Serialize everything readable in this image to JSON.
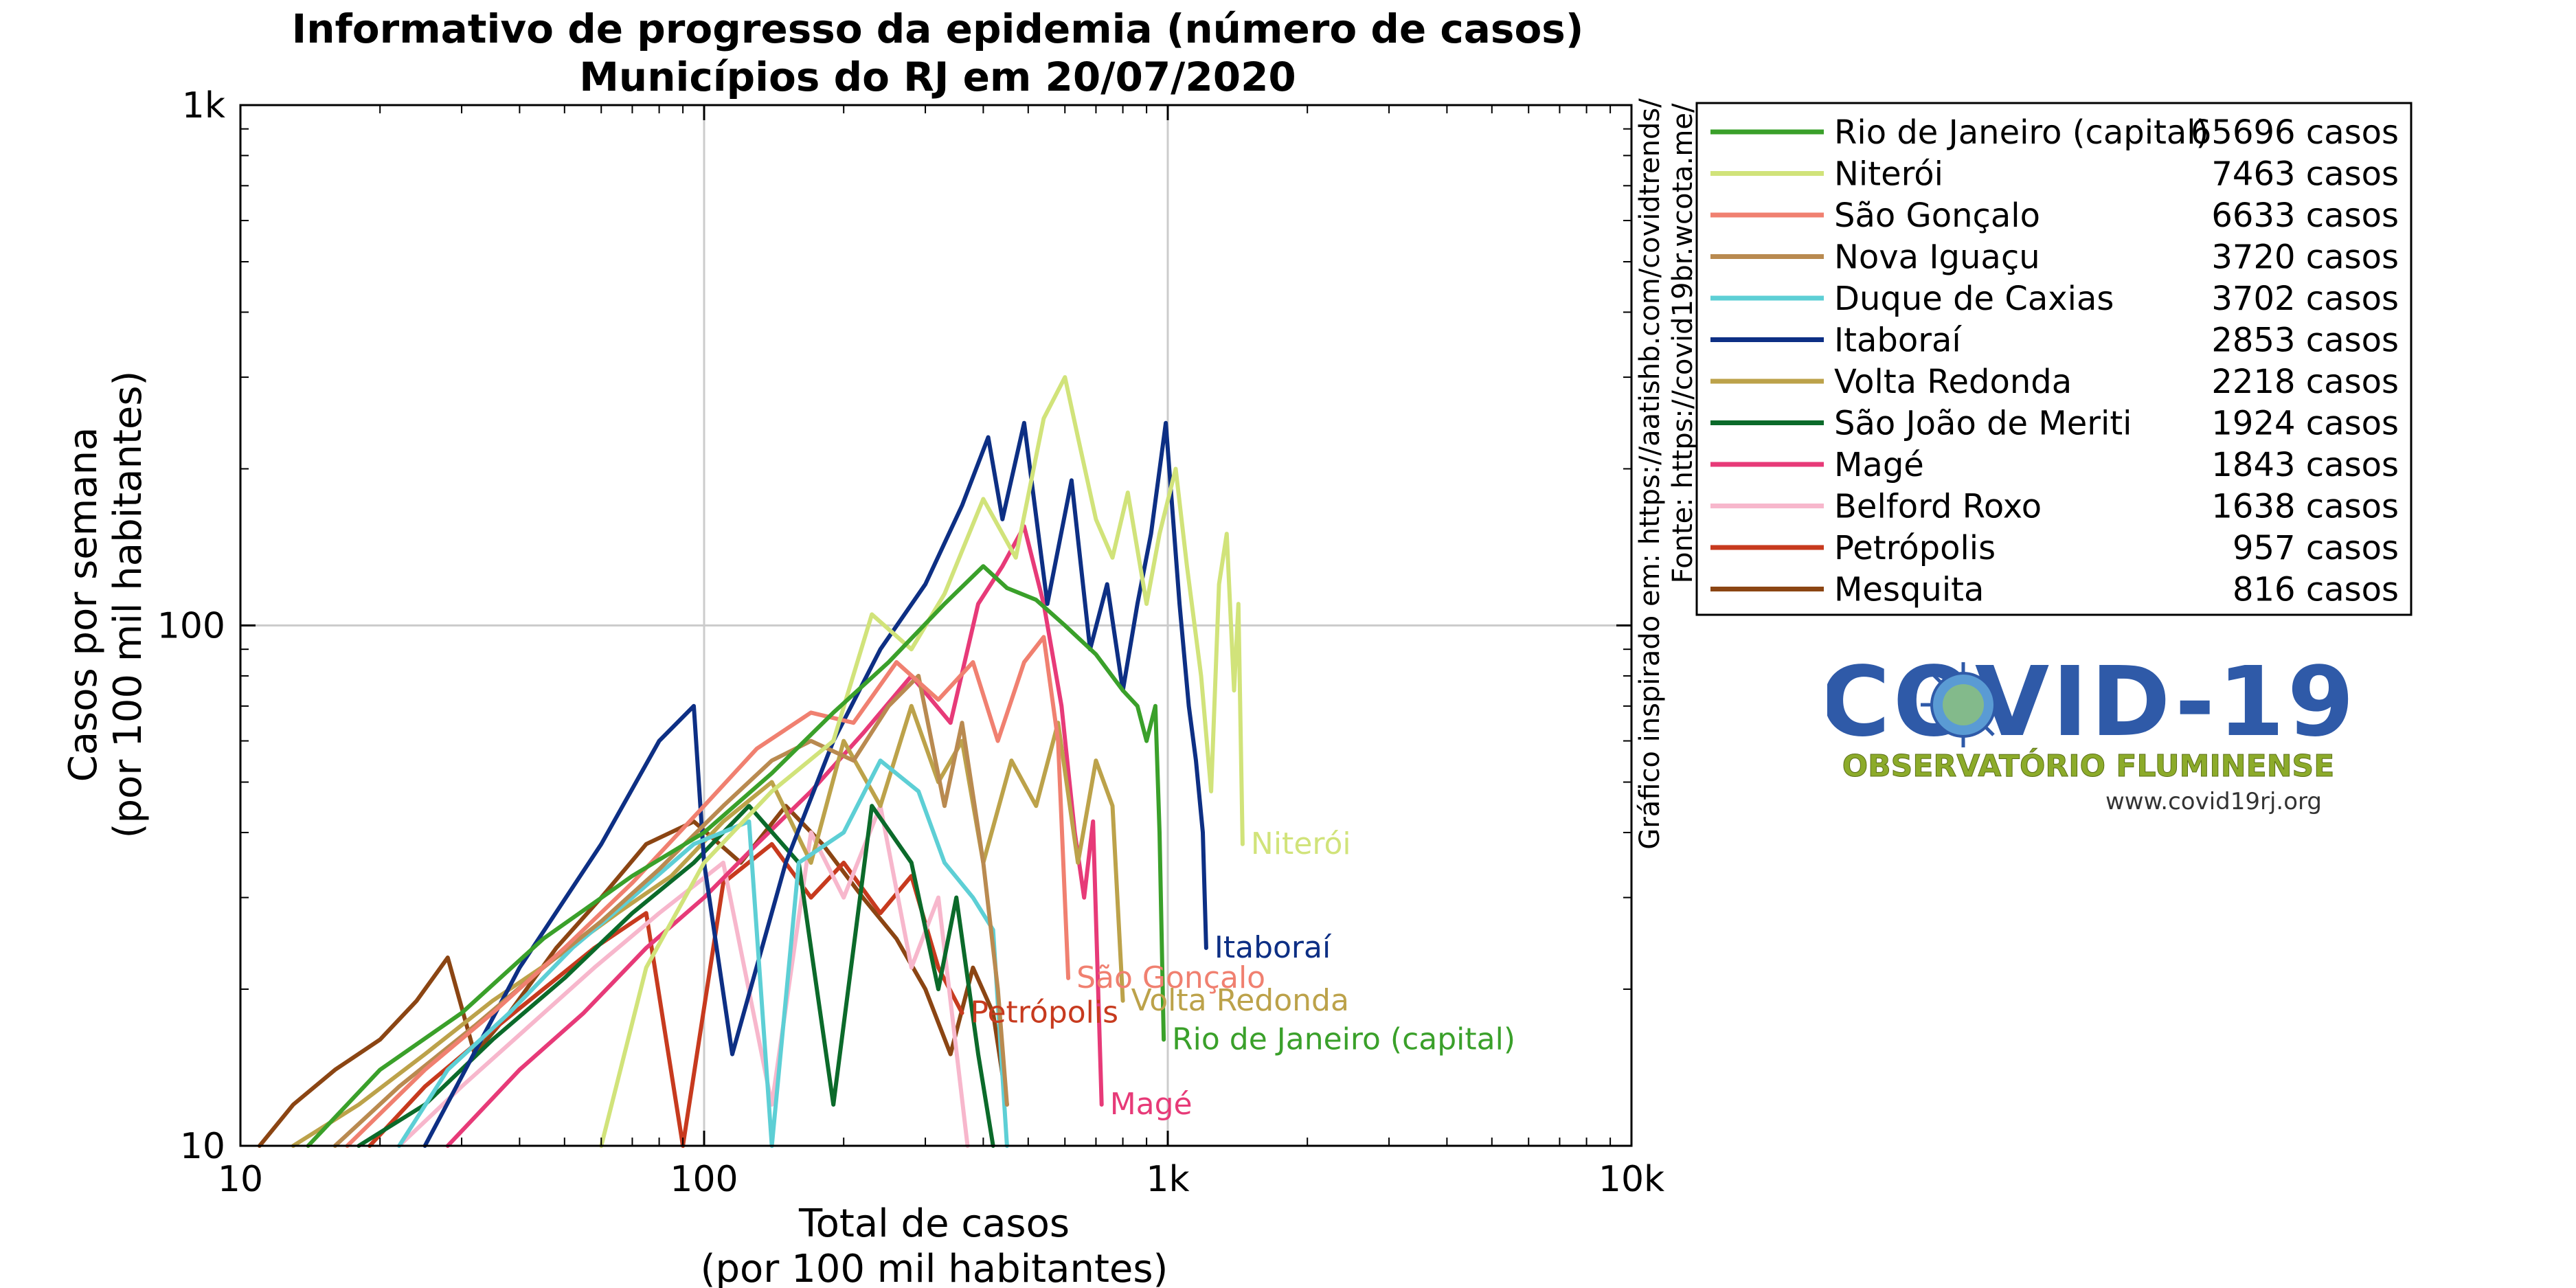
{
  "title_line1": "Informativo de progresso da epidemia (número de casos)",
  "title_line2": "Municípios do RJ em 20/07/2020",
  "source_line1": "Gráfico inspirado em: https://aatishb.com/covidtrends/",
  "source_line2": "Fonte: https://covid19br.wcota.me/",
  "logo": {
    "title": "COVID-19",
    "subtitle": "OBSERVATÓRIO FLUMINENSE",
    "url": "www.covid19rj.org"
  },
  "chart_data": {
    "type": "line",
    "xscale": "log",
    "yscale": "log",
    "xlim": [
      10,
      10000
    ],
    "ylim": [
      10,
      1000
    ],
    "grid": true,
    "legend_position": "right",
    "xlabel": "Total de casos",
    "xlabel2": "(por 100 mil habitantes)",
    "ylabel": "Casos por semana",
    "ylabel2": "(por 100 mil habitantes)",
    "xticks": [
      {
        "value": 10,
        "label": "10"
      },
      {
        "value": 100,
        "label": "100"
      },
      {
        "value": 1000,
        "label": "1k"
      },
      {
        "value": 10000,
        "label": "10k"
      }
    ],
    "yticks": [
      {
        "value": 10,
        "label": "10"
      },
      {
        "value": 100,
        "label": "100"
      },
      {
        "value": 1000,
        "label": "1k"
      }
    ],
    "series": [
      {
        "name": "Rio de Janeiro (capital)",
        "cases": "65696 casos",
        "color": "#3aa02a",
        "end_label": "Rio de Janeiro (capital)",
        "points": [
          [
            14,
            10
          ],
          [
            20,
            14
          ],
          [
            30,
            18
          ],
          [
            45,
            25
          ],
          [
            70,
            33
          ],
          [
            100,
            40
          ],
          [
            140,
            52
          ],
          [
            190,
            68
          ],
          [
            250,
            85
          ],
          [
            330,
            110
          ],
          [
            400,
            130
          ],
          [
            450,
            118
          ],
          [
            520,
            112
          ],
          [
            600,
            100
          ],
          [
            700,
            88
          ],
          [
            800,
            75
          ],
          [
            860,
            70
          ],
          [
            900,
            60
          ],
          [
            940,
            70
          ],
          [
            960,
            40
          ],
          [
            980,
            16
          ]
        ]
      },
      {
        "name": "Niterói",
        "cases": "7463 casos",
        "color": "#d1e37a",
        "end_label": "Niterói",
        "points": [
          [
            60,
            10
          ],
          [
            75,
            22
          ],
          [
            100,
            35
          ],
          [
            140,
            48
          ],
          [
            190,
            60
          ],
          [
            230,
            105
          ],
          [
            280,
            90
          ],
          [
            330,
            115
          ],
          [
            400,
            175
          ],
          [
            470,
            135
          ],
          [
            540,
            250
          ],
          [
            600,
            300
          ],
          [
            640,
            230
          ],
          [
            700,
            160
          ],
          [
            760,
            135
          ],
          [
            820,
            180
          ],
          [
            900,
            110
          ],
          [
            960,
            150
          ],
          [
            1040,
            200
          ],
          [
            1100,
            130
          ],
          [
            1180,
            80
          ],
          [
            1240,
            48
          ],
          [
            1290,
            120
          ],
          [
            1340,
            150
          ],
          [
            1390,
            75
          ],
          [
            1420,
            110
          ],
          [
            1450,
            38
          ]
        ]
      },
      {
        "name": "São Gonçalo",
        "cases": "6633 casos",
        "color": "#f08070",
        "end_label": "São Gonçalo",
        "points": [
          [
            17,
            10
          ],
          [
            25,
            14
          ],
          [
            35,
            18
          ],
          [
            50,
            24
          ],
          [
            70,
            32
          ],
          [
            100,
            45
          ],
          [
            130,
            58
          ],
          [
            170,
            68
          ],
          [
            210,
            65
          ],
          [
            260,
            85
          ],
          [
            320,
            72
          ],
          [
            380,
            85
          ],
          [
            430,
            60
          ],
          [
            490,
            85
          ],
          [
            540,
            95
          ],
          [
            580,
            60
          ],
          [
            610,
            21
          ]
        ]
      },
      {
        "name": "Nova Iguaçu",
        "cases": "3720 casos",
        "color": "#b98a50",
        "end_label": null,
        "points": [
          [
            16,
            10
          ],
          [
            22,
            13
          ],
          [
            32,
            17
          ],
          [
            45,
            22
          ],
          [
            60,
            27
          ],
          [
            80,
            34
          ],
          [
            110,
            45
          ],
          [
            140,
            55
          ],
          [
            170,
            60
          ],
          [
            210,
            55
          ],
          [
            250,
            70
          ],
          [
            290,
            80
          ],
          [
            330,
            45
          ],
          [
            360,
            65
          ],
          [
            400,
            35
          ],
          [
            430,
            20
          ],
          [
            450,
            12
          ]
        ]
      },
      {
        "name": "Duque de Caxias",
        "cases": "3702 casos",
        "color": "#5dcfd5",
        "end_label": null,
        "points": [
          [
            22,
            10
          ],
          [
            28,
            14
          ],
          [
            38,
            18
          ],
          [
            52,
            24
          ],
          [
            70,
            30
          ],
          [
            95,
            38
          ],
          [
            125,
            42
          ],
          [
            140,
            10
          ],
          [
            160,
            35
          ],
          [
            200,
            40
          ],
          [
            240,
            55
          ],
          [
            290,
            48
          ],
          [
            330,
            35
          ],
          [
            380,
            30
          ],
          [
            420,
            26
          ],
          [
            450,
            10
          ]
        ]
      },
      {
        "name": "Itaboraí",
        "cases": "2853 casos",
        "color": "#0d2f84",
        "end_label": "Itaboraí",
        "points": [
          [
            25,
            10
          ],
          [
            40,
            22
          ],
          [
            60,
            38
          ],
          [
            80,
            60
          ],
          [
            95,
            70
          ],
          [
            100,
            35
          ],
          [
            115,
            15
          ],
          [
            150,
            35
          ],
          [
            190,
            60
          ],
          [
            240,
            90
          ],
          [
            300,
            120
          ],
          [
            360,
            170
          ],
          [
            410,
            230
          ],
          [
            440,
            160
          ],
          [
            490,
            245
          ],
          [
            550,
            110
          ],
          [
            620,
            190
          ],
          [
            680,
            90
          ],
          [
            740,
            120
          ],
          [
            800,
            75
          ],
          [
            860,
            110
          ],
          [
            920,
            150
          ],
          [
            990,
            245
          ],
          [
            1060,
            110
          ],
          [
            1110,
            70
          ],
          [
            1150,
            55
          ],
          [
            1190,
            40
          ],
          [
            1210,
            24
          ]
        ]
      },
      {
        "name": "Volta Redonda",
        "cases": "2218 casos",
        "color": "#bca24a",
        "end_label": "Volta Redonda",
        "points": [
          [
            13,
            10
          ],
          [
            18,
            12
          ],
          [
            25,
            15
          ],
          [
            35,
            19
          ],
          [
            48,
            23
          ],
          [
            65,
            28
          ],
          [
            85,
            33
          ],
          [
            110,
            42
          ],
          [
            140,
            50
          ],
          [
            170,
            35
          ],
          [
            200,
            60
          ],
          [
            240,
            45
          ],
          [
            280,
            70
          ],
          [
            320,
            50
          ],
          [
            360,
            60
          ],
          [
            400,
            35
          ],
          [
            460,
            55
          ],
          [
            520,
            45
          ],
          [
            580,
            65
          ],
          [
            640,
            35
          ],
          [
            700,
            55
          ],
          [
            760,
            45
          ],
          [
            800,
            19
          ]
        ]
      },
      {
        "name": "São João de Meriti",
        "cases": "1924 casos",
        "color": "#0b6a2a",
        "end_label": null,
        "points": [
          [
            18,
            10
          ],
          [
            25,
            12
          ],
          [
            35,
            16
          ],
          [
            50,
            21
          ],
          [
            70,
            28
          ],
          [
            95,
            35
          ],
          [
            125,
            45
          ],
          [
            160,
            35
          ],
          [
            190,
            12
          ],
          [
            230,
            45
          ],
          [
            280,
            35
          ],
          [
            320,
            20
          ],
          [
            350,
            30
          ],
          [
            390,
            15
          ],
          [
            420,
            10
          ]
        ]
      },
      {
        "name": "Magé",
        "cases": "1843 casos",
        "color": "#e73a78",
        "end_label": "Magé",
        "points": [
          [
            28,
            10
          ],
          [
            40,
            14
          ],
          [
            55,
            18
          ],
          [
            75,
            24
          ],
          [
            100,
            30
          ],
          [
            130,
            38
          ],
          [
            170,
            48
          ],
          [
            220,
            62
          ],
          [
            280,
            80
          ],
          [
            340,
            65
          ],
          [
            390,
            110
          ],
          [
            440,
            130
          ],
          [
            490,
            155
          ],
          [
            540,
            110
          ],
          [
            590,
            70
          ],
          [
            630,
            40
          ],
          [
            660,
            30
          ],
          [
            690,
            42
          ],
          [
            720,
            12
          ]
        ]
      },
      {
        "name": "Belford Roxo",
        "cases": "1638 casos",
        "color": "#f7b7cc",
        "end_label": null,
        "points": [
          [
            22,
            10
          ],
          [
            30,
            13
          ],
          [
            42,
            17
          ],
          [
            58,
            22
          ],
          [
            80,
            28
          ],
          [
            110,
            35
          ],
          [
            140,
            12
          ],
          [
            170,
            40
          ],
          [
            200,
            30
          ],
          [
            240,
            45
          ],
          [
            280,
            22
          ],
          [
            320,
            30
          ],
          [
            370,
            10
          ]
        ]
      },
      {
        "name": "Petrópolis",
        "cases": "957 casos",
        "color": "#c73a1e",
        "end_label": "Petrópolis",
        "points": [
          [
            19,
            10
          ],
          [
            25,
            13
          ],
          [
            33,
            16
          ],
          [
            45,
            20
          ],
          [
            58,
            24
          ],
          [
            75,
            28
          ],
          [
            90,
            10
          ],
          [
            110,
            32
          ],
          [
            140,
            38
          ],
          [
            170,
            30
          ],
          [
            200,
            35
          ],
          [
            240,
            28
          ],
          [
            280,
            33
          ],
          [
            320,
            22
          ],
          [
            360,
            18
          ]
        ]
      },
      {
        "name": "Mesquita",
        "cases": "816 casos",
        "color": "#8b4513",
        "end_label": null,
        "points": [
          [
            11,
            10
          ],
          [
            13,
            12
          ],
          [
            16,
            14
          ],
          [
            20,
            16
          ],
          [
            24,
            19
          ],
          [
            28,
            23
          ],
          [
            32,
            15
          ],
          [
            38,
            18
          ],
          [
            48,
            24
          ],
          [
            60,
            30
          ],
          [
            75,
            38
          ],
          [
            95,
            42
          ],
          [
            120,
            35
          ],
          [
            150,
            45
          ],
          [
            180,
            38
          ],
          [
            220,
            30
          ],
          [
            260,
            25
          ],
          [
            300,
            20
          ],
          [
            340,
            15
          ],
          [
            380,
            22
          ],
          [
            420,
            18
          ],
          [
            450,
            12
          ]
        ]
      }
    ]
  }
}
